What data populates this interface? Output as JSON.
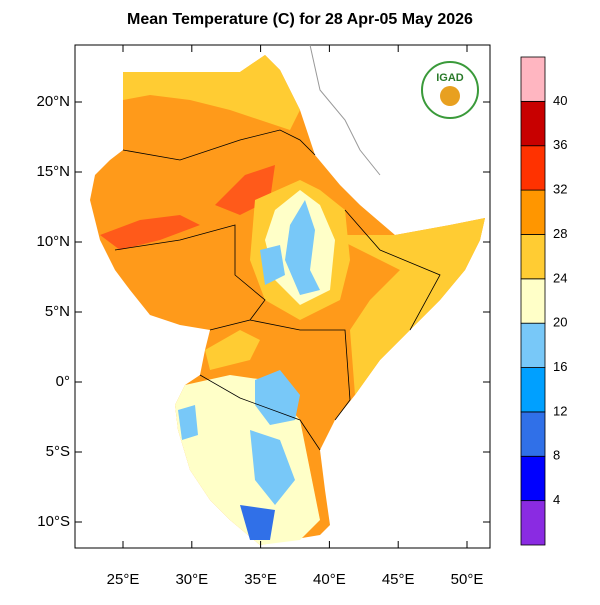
{
  "title": "Mean Temperature (C) for 28 Apr-05 May 2026",
  "map": {
    "lat_ticks": [
      "20°N",
      "15°N",
      "10°N",
      "5°N",
      "0°",
      "5°S",
      "10°S"
    ],
    "lon_ticks": [
      "25°E",
      "30°E",
      "35°E",
      "40°E",
      "45°E",
      "50°E"
    ]
  },
  "logo": "IGAD",
  "colorbar": {
    "levels": [
      4,
      8,
      12,
      16,
      20,
      24,
      28,
      32,
      36,
      40
    ],
    "colors": [
      "#8a2be2",
      "#0000ff",
      "#3070e8",
      "#00a0ff",
      "#78c8f8",
      "#ffffc8",
      "#ffcc33",
      "#ff9600",
      "#ff3200",
      "#c80000",
      "#ffb6c1"
    ]
  }
}
